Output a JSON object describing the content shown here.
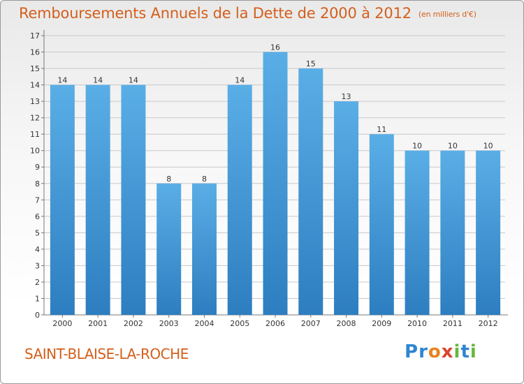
{
  "header": {
    "title": "Remboursements Annuels de la Dette de 2000 à 2012",
    "unit": "(en milliers d'€)"
  },
  "footer": {
    "commune": "SAINT-BLAISE-LA-ROCHE",
    "logo": "Proxiti"
  },
  "colors": {
    "title": "#d45f1c",
    "bar_top": "#5aaee6",
    "bar_bottom": "#2d7ec0",
    "grid": "#c8c8c8"
  },
  "chart_data": {
    "type": "bar",
    "title": "Remboursements Annuels de la Dette de 2000 à 2012",
    "xlabel": "",
    "ylabel": "",
    "categories": [
      "2000",
      "2001",
      "2002",
      "2003",
      "2004",
      "2005",
      "2006",
      "2007",
      "2008",
      "2009",
      "2010",
      "2011",
      "2012"
    ],
    "values": [
      14,
      14,
      14,
      8,
      8,
      14,
      16,
      15,
      13,
      11,
      10,
      10,
      10
    ],
    "ylim": [
      0,
      17
    ],
    "yticks": [
      0,
      1,
      2,
      3,
      4,
      5,
      6,
      7,
      8,
      9,
      10,
      11,
      12,
      13,
      14,
      15,
      16,
      17
    ],
    "grid": true,
    "data_labels": true
  }
}
